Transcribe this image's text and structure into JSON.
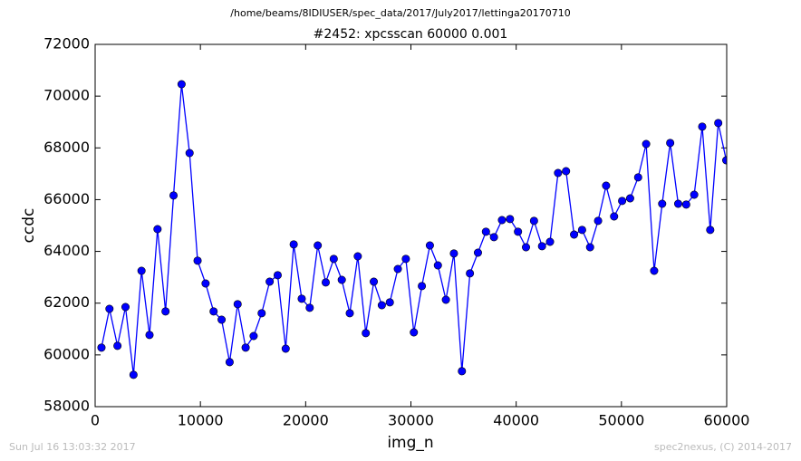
{
  "chart_data": {
    "type": "line",
    "suptitle": "/home/beams/8IDIUSER/spec_data/2017/July2017/lettinga20170710",
    "title": "#2452: xpcsscan 60000 0.001",
    "xlabel": "img_n",
    "ylabel": "ccdc",
    "footer_left": "Sun Jul 16 13:03:32 2017",
    "footer_right": "spec2nexus, (C) 2014-2017",
    "xlim": [
      0,
      60000
    ],
    "ylim": [
      58000,
      72000
    ],
    "xticks": [
      0,
      10000,
      20000,
      30000,
      40000,
      50000,
      60000
    ],
    "yticks": [
      58000,
      60000,
      62000,
      64000,
      66000,
      68000,
      70000,
      72000
    ],
    "series": [
      {
        "color": "#0000ff",
        "x": [
          600,
          1361,
          2122,
          2883,
          3644,
          4405,
          5166,
          5927,
          6688,
          7449,
          8210,
          8971,
          9732,
          10493,
          11254,
          12015,
          12776,
          13537,
          14298,
          15059,
          15820,
          16581,
          17342,
          18103,
          18864,
          19625,
          20386,
          21147,
          21908,
          22669,
          23430,
          24191,
          24952,
          25713,
          26474,
          27235,
          27996,
          28757,
          29518,
          30279,
          31040,
          31801,
          32562,
          33323,
          34084,
          34845,
          35606,
          36367,
          37128,
          37889,
          38650,
          39411,
          40172,
          40933,
          41694,
          42455,
          43216,
          43977,
          44738,
          45499,
          46260,
          47021,
          47782,
          48543,
          49304,
          50065,
          50826,
          51587,
          52348,
          53109,
          53870,
          54631,
          55392,
          56153,
          56914,
          57675,
          58436,
          59197,
          59958
        ],
        "values": [
          60280,
          61780,
          60350,
          61850,
          59230,
          63250,
          60770,
          64860,
          61680,
          66160,
          70460,
          67800,
          63640,
          62760,
          61680,
          61360,
          59720,
          61960,
          60280,
          60730,
          61610,
          62830,
          63080,
          60240,
          64270,
          62170,
          61820,
          64230,
          62800,
          63710,
          62900,
          61610,
          63810,
          60840,
          62830,
          61920,
          62030,
          63320,
          63710,
          60870,
          62660,
          64230,
          63460,
          62130,
          63920,
          59370,
          63150,
          63950,
          64760,
          64550,
          65210,
          65250,
          64760,
          64160,
          65180,
          64200,
          64370,
          67030,
          67100,
          64650,
          64830,
          64160,
          65180,
          66540,
          65350,
          65950,
          66050,
          66860,
          68150,
          63250,
          65840,
          68190,
          65840,
          65810,
          66190,
          68820,
          64830,
          68960,
          67520
        ]
      }
    ]
  }
}
